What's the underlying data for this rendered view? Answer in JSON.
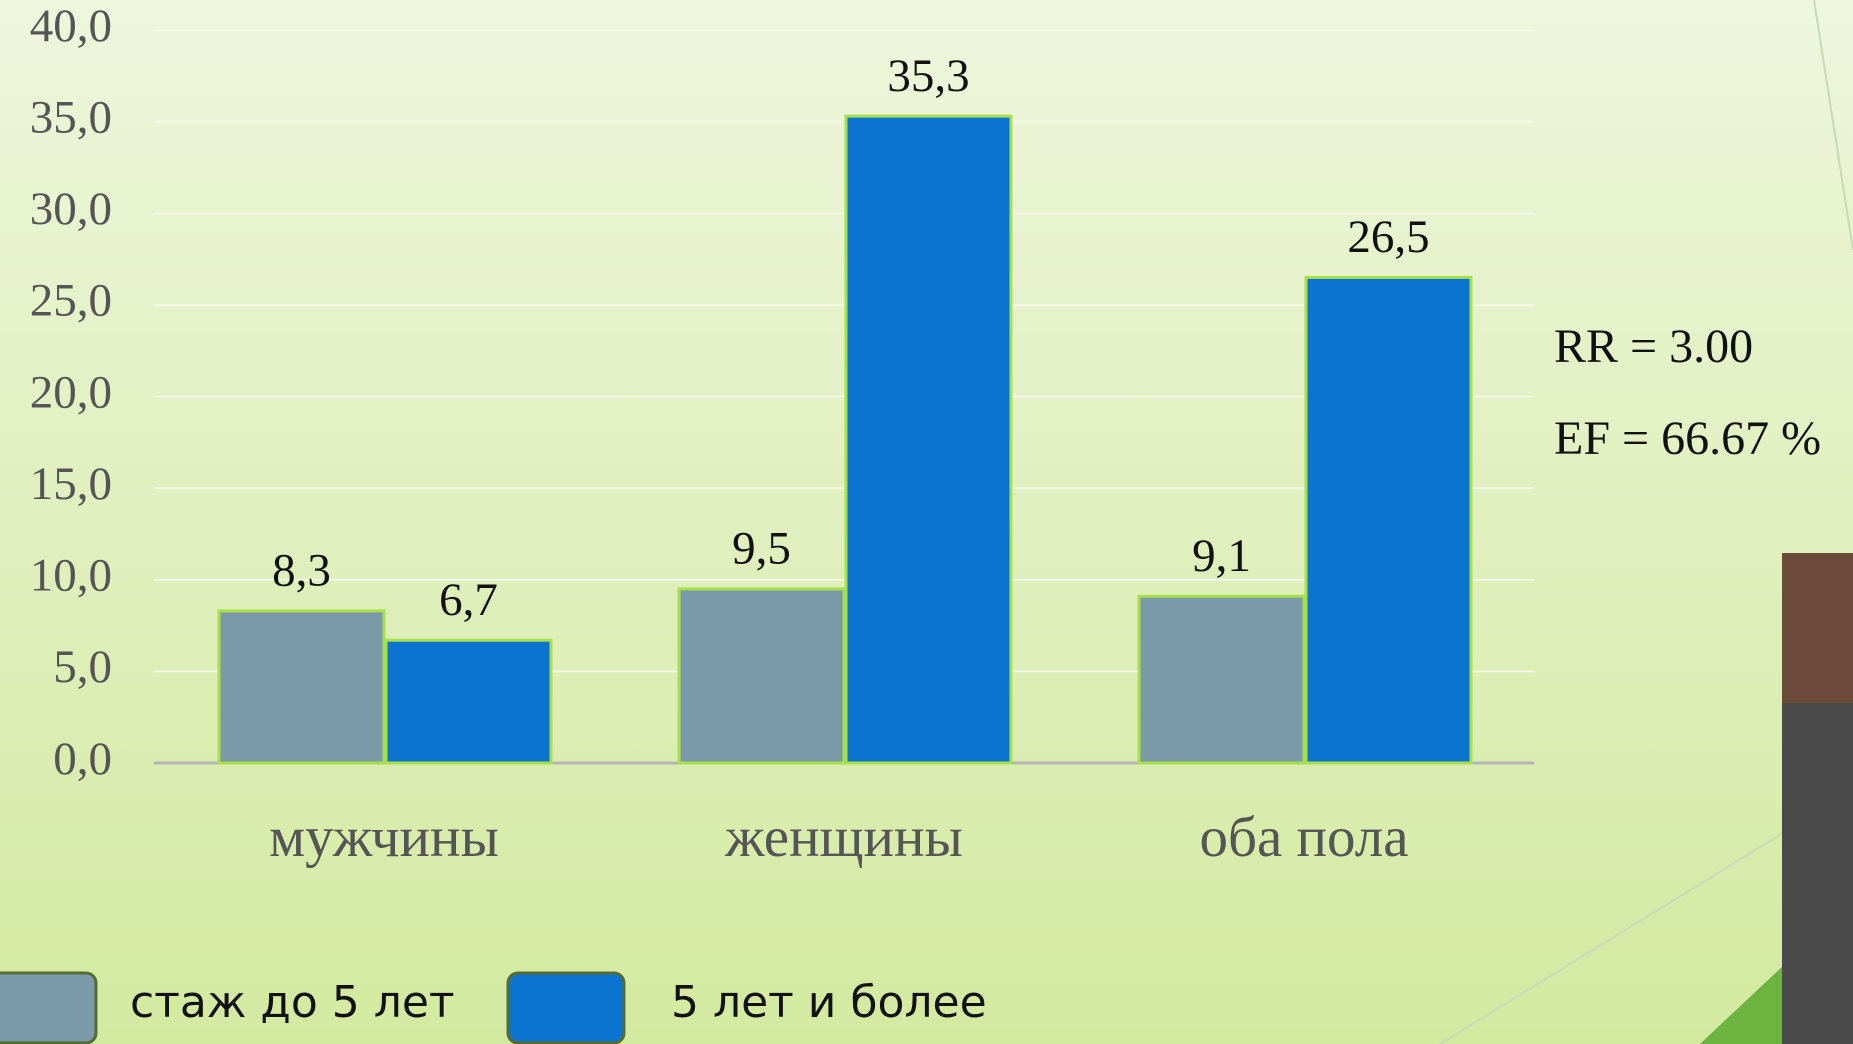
{
  "chart_data": {
    "type": "bar",
    "categories": [
      "мужчины",
      "женщины",
      "оба пола"
    ],
    "series": [
      {
        "name": "стаж до 5 лет",
        "color": "#7b9aa9",
        "values": [
          8.3,
          9.5,
          9.1
        ],
        "value_labels": [
          "8,3",
          "9,5",
          "9,1"
        ]
      },
      {
        "name": "5 лет и более",
        "color": "#0a74d0",
        "values": [
          6.7,
          35.3,
          26.5
        ],
        "value_labels": [
          "6,7",
          "35,3",
          "26,5"
        ]
      }
    ],
    "ylim": [
      0,
      40
    ],
    "yticks": [
      {
        "value": 0,
        "label": "0,0"
      },
      {
        "value": 5,
        "label": "5,0"
      },
      {
        "value": 10,
        "label": "10,0"
      },
      {
        "value": 15,
        "label": "15,0"
      },
      {
        "value": 20,
        "label": "20,0"
      },
      {
        "value": 25,
        "label": "25,0"
      },
      {
        "value": 30,
        "label": "30,0"
      },
      {
        "value": 35,
        "label": "35,0"
      },
      {
        "value": 40,
        "label": "40,0"
      }
    ],
    "grid": true,
    "annotations": [
      "RR = 3.00",
      "EF = 66.67 %"
    ]
  }
}
